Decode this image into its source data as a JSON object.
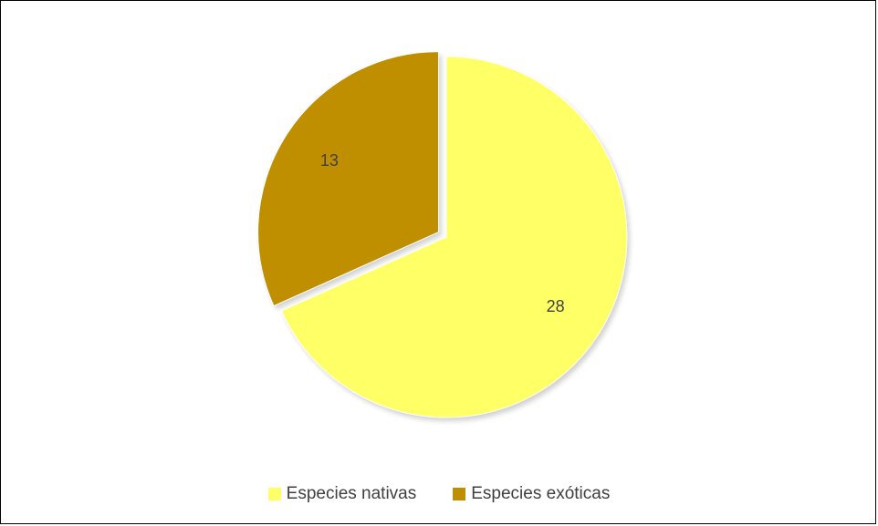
{
  "chart_data": {
    "type": "pie",
    "categories": [
      "Especies nativas",
      "Especies exóticas"
    ],
    "values": [
      28,
      13
    ],
    "colors": [
      "#FFFF66",
      "#BF8F00"
    ],
    "data_labels": [
      "28",
      "13"
    ],
    "exploded": [
      "Especies exóticas"
    ],
    "legend_position": "bottom",
    "title": ""
  }
}
